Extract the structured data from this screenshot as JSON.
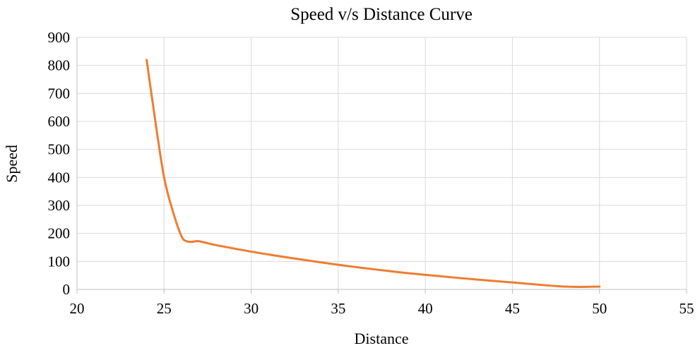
{
  "chart_data": {
    "type": "line",
    "title": "Speed v/s Distance Curve",
    "xlabel": "Distance",
    "ylabel": "Speed",
    "xlim": [
      20,
      55
    ],
    "ylim": [
      0,
      900
    ],
    "x_ticks": [
      20,
      25,
      30,
      35,
      40,
      45,
      50,
      55
    ],
    "y_ticks": [
      0,
      100,
      200,
      300,
      400,
      500,
      600,
      700,
      800,
      900
    ],
    "grid": true,
    "series": [
      {
        "color": "#ed7d31",
        "x": [
          24,
          24.5,
          25,
          25.5,
          26,
          26.3,
          26.6,
          27,
          28,
          30,
          32,
          35,
          38,
          40,
          43,
          45,
          48,
          50
        ],
        "y": [
          820,
          600,
          400,
          280,
          190,
          172,
          170,
          172,
          158,
          135,
          115,
          88,
          65,
          52,
          35,
          25,
          10,
          10
        ]
      }
    ]
  }
}
